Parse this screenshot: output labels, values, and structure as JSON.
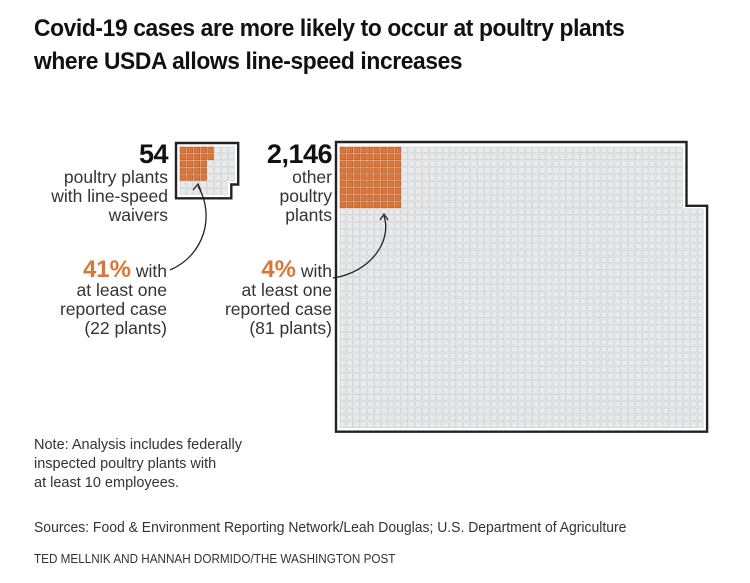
{
  "title": "Covid-19 cases are more likely to occur at poultry plants where USDA allows line-speed increases",
  "colors": {
    "highlight": "#d9773a",
    "cell": "#e9eaec",
    "gridline": "#c9cacd",
    "outline": "#222222"
  },
  "chart_data": {
    "type": "waffle",
    "title": "Covid-19 cases are more likely to occur at poultry plants where USDA allows line-speed increases",
    "groups": [
      {
        "name": "poultry plants with line-speed waivers",
        "total": 54,
        "total_label": "54",
        "description_lines": [
          "poultry plants",
          "with line-speed",
          "waivers"
        ],
        "with_case": 22,
        "percent_label": "41%",
        "annotation_lines": [
          "with",
          "at least one",
          "reported case",
          "(22 plants)"
        ]
      },
      {
        "name": "other poultry plants",
        "total": 2146,
        "total_label": "2,146",
        "description_lines": [
          "other",
          "poultry",
          "plants"
        ],
        "with_case": 81,
        "percent_label": "4%",
        "annotation_lines": [
          "with",
          "at least one",
          "reported case",
          "(81 plants)"
        ]
      }
    ],
    "legend": "none"
  },
  "note_lines": [
    "Note: Analysis includes federally",
    "inspected poultry plants with",
    "at least 10 employees."
  ],
  "sources": "Sources: Food & Environment Reporting Network/Leah Douglas; U.S. Department of Agriculture",
  "credit": "TED MELLNIK AND HANNAH DORMIDO/THE WASHINGTON POST"
}
